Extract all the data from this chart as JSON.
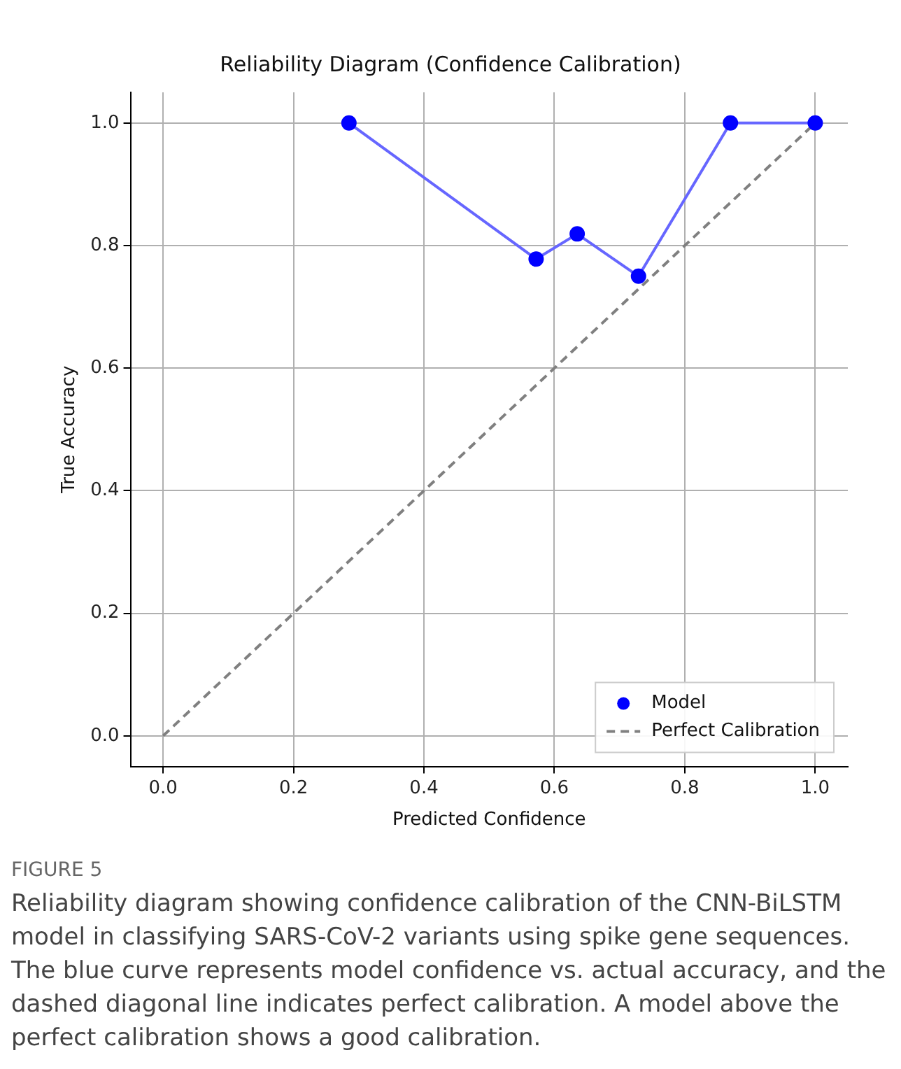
{
  "chart_data": {
    "type": "scatter",
    "title": "Reliability Diagram (Confidence Calibration)",
    "xlabel": "Predicted Confidence",
    "ylabel": "True Accuracy",
    "xlim": [
      -0.05,
      1.05
    ],
    "ylim": [
      -0.05,
      1.05
    ],
    "xticks": [
      {
        "value": 0,
        "label": "0.0"
      },
      {
        "value": 0.2,
        "label": "0.2"
      },
      {
        "value": 0.4,
        "label": "0.4"
      },
      {
        "value": 0.6,
        "label": "0.6"
      },
      {
        "value": 0.8,
        "label": "0.8"
      },
      {
        "value": 1,
        "label": "1.0"
      }
    ],
    "yticks": [
      {
        "value": 0,
        "label": "0.0"
      },
      {
        "value": 0.2,
        "label": "0.2"
      },
      {
        "value": 0.4,
        "label": "0.4"
      },
      {
        "value": 0.6,
        "label": "0.6"
      },
      {
        "value": 0.8,
        "label": "0.8"
      },
      {
        "value": 1,
        "label": "1.0"
      }
    ],
    "series": [
      {
        "type": "line",
        "color": "#6666ff",
        "line_style": "solid",
        "marker": "none",
        "x": [
          0.285,
          0.572,
          0.635,
          0.729,
          0.87,
          1.0
        ],
        "values": [
          1.0,
          0.778,
          0.819,
          0.75,
          1.0,
          1.0
        ]
      },
      {
        "type": "scatter",
        "name": "Model",
        "color": "#0000ff",
        "marker": "circle",
        "x": [
          0.285,
          0.572,
          0.635,
          0.729,
          0.87,
          1.0
        ],
        "values": [
          1.0,
          0.778,
          0.819,
          0.75,
          1.0,
          1.0
        ]
      },
      {
        "type": "line",
        "name": "Perfect Calibration",
        "color": "#808080",
        "line_style": "dashed",
        "marker": "none",
        "x": [
          0,
          1
        ],
        "values": [
          0,
          1
        ]
      }
    ],
    "grid": true,
    "legend": "bottom right",
    "annotations": [
      "FIGURE 5",
      "Reliability diagram showing confidence calibration of the CNN-BiLSTM model in classifying SARS-CoV-2 variants using spike gene sequences. The blue curve represents model confidence vs. actual accuracy, and the dashed diagonal line indicates perfect calibration. A model above the perfect calibration shows a good calibration."
    ]
  }
}
